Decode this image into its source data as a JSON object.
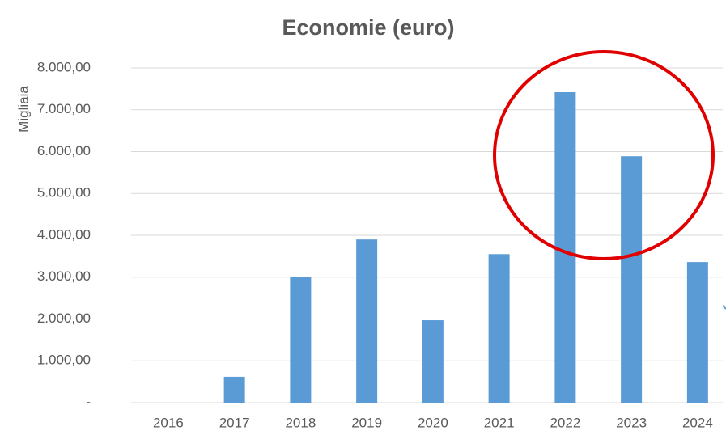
{
  "chart_data": {
    "type": "bar",
    "title": "Economie (euro)",
    "y_label": "Migliaia",
    "categories": [
      "2016",
      "2017",
      "2018",
      "2019",
      "2020",
      "2021",
      "2022",
      "2023",
      "2024"
    ],
    "values": [
      0,
      620,
      3000,
      3900,
      1970,
      3550,
      7420,
      5890,
      3360
    ],
    "color": "#5b9bd5",
    "ylim": [
      0,
      8000
    ],
    "yticks": [
      {
        "value": 0,
        "label": "-"
      },
      {
        "value": 1000,
        "label": "1.000,00"
      },
      {
        "value": 2000,
        "label": "2.000,00"
      },
      {
        "value": 3000,
        "label": "3.000,00"
      },
      {
        "value": 4000,
        "label": "4.000,00"
      },
      {
        "value": 5000,
        "label": "5.000,00"
      },
      {
        "value": 6000,
        "label": "6.000,00"
      },
      {
        "value": 7000,
        "label": "7.000,00"
      },
      {
        "value": 8000,
        "label": "8.000,00"
      }
    ],
    "grid": true
  }
}
